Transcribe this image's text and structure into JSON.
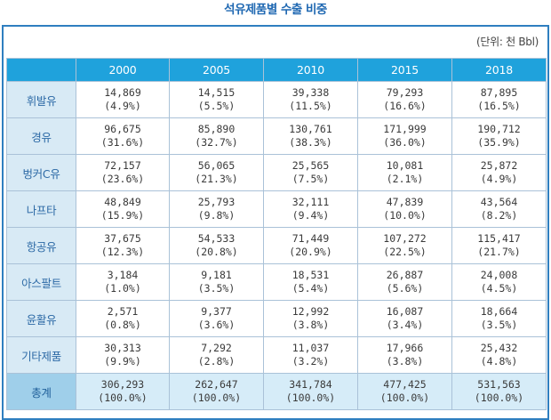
{
  "title": "석유제품별 수출 비중",
  "unit": "(단위: 천 Bbl)",
  "chart_data": {
    "type": "table",
    "title": "석유제품별 수출 비중",
    "unit": "(단위: 천 Bbl)",
    "columns": [
      "2000",
      "2005",
      "2010",
      "2015",
      "2018"
    ],
    "rows": [
      {
        "label": "휘발유",
        "values": [
          "14,869",
          "14,515",
          "39,338",
          "79,293",
          "87,895"
        ],
        "shares": [
          "(4.9%)",
          "(5.5%)",
          "(11.5%)",
          "(16.6%)",
          "(16.5%)"
        ]
      },
      {
        "label": "경유",
        "values": [
          "96,675",
          "85,890",
          "130,761",
          "171,999",
          "190,712"
        ],
        "shares": [
          "(31.6%)",
          "(32.7%)",
          "(38.3%)",
          "(36.0%)",
          "(35.9%)"
        ]
      },
      {
        "label": "벙커C유",
        "values": [
          "72,157",
          "56,065",
          "25,565",
          "10,081",
          "25,872"
        ],
        "shares": [
          "(23.6%)",
          "(21.3%)",
          "(7.5%)",
          "(2.1%)",
          "(4.9%)"
        ]
      },
      {
        "label": "나프타",
        "values": [
          "48,849",
          "25,793",
          "32,111",
          "47,839",
          "43,564"
        ],
        "shares": [
          "(15.9%)",
          "(9.8%)",
          "(9.4%)",
          "(10.0%)",
          "(8.2%)"
        ]
      },
      {
        "label": "항공유",
        "values": [
          "37,675",
          "54,533",
          "71,449",
          "107,272",
          "115,417"
        ],
        "shares": [
          "(12.3%)",
          "(20.8%)",
          "(20.9%)",
          "(22.5%)",
          "(21.7%)"
        ]
      },
      {
        "label": "아스팔트",
        "values": [
          "3,184",
          "9,181",
          "18,531",
          "26,887",
          "24,008"
        ],
        "shares": [
          "(1.0%)",
          "(3.5%)",
          "(5.4%)",
          "(5.6%)",
          "(4.5%)"
        ]
      },
      {
        "label": "윤활유",
        "values": [
          "2,571",
          "9,377",
          "12,992",
          "16,087",
          "18,664"
        ],
        "shares": [
          "(0.8%)",
          "(3.6%)",
          "(3.8%)",
          "(3.4%)",
          "(3.5%)"
        ]
      },
      {
        "label": "기타제품",
        "values": [
          "30,313",
          "7,292",
          "11,037",
          "17,966",
          "25,432"
        ],
        "shares": [
          "(9.9%)",
          "(2.8%)",
          "(3.2%)",
          "(3.8%)",
          "(4.8%)"
        ]
      },
      {
        "label": "총계",
        "values": [
          "306,293",
          "262,647",
          "341,784",
          "477,425",
          "531,563"
        ],
        "shares": [
          "(100.0%)",
          "(100.0%)",
          "(100.0%)",
          "(100.0%)",
          "(100.0%)"
        ]
      }
    ]
  },
  "colors": {
    "title": "#1f68b2",
    "header_bg": "#1fa2dc",
    "rowhead_bg": "#d8eaf5",
    "total_rowhead_bg": "#9fcfea",
    "total_row_bg": "#d6ecf8",
    "frame": "#2f7fc0"
  }
}
